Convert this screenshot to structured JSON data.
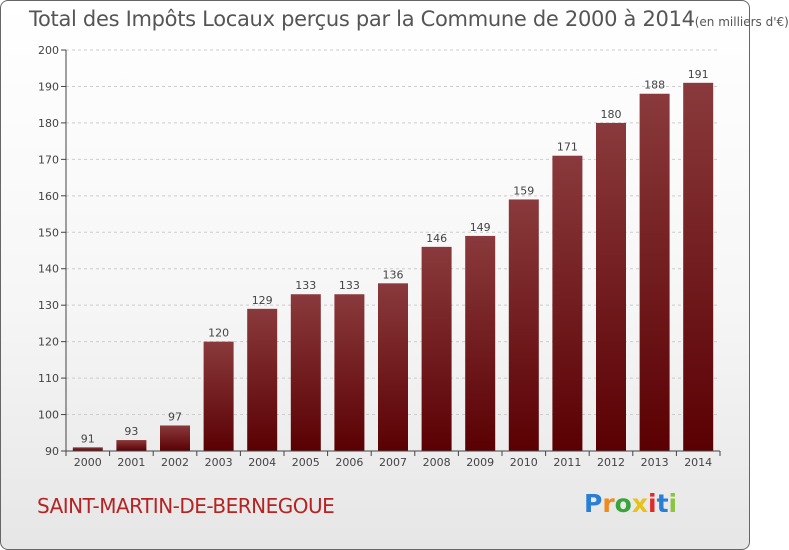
{
  "title": "Total des Impôts Locaux perçus par la Commune de 2000 à 2014",
  "title_unit": "(en milliers d'€)",
  "commune": "SAINT-MARTIN-DE-BERNEGOUE",
  "logo": {
    "text": "Proxiti",
    "letters": [
      "P",
      "r",
      "o",
      "x",
      "i",
      "t",
      "i"
    ],
    "colors": [
      "#2a7fd4",
      "#f08a1c",
      "#3aa33a",
      "#e8c21a",
      "#e02a2a",
      "#2a7fd4",
      "#8bc53f"
    ]
  },
  "colors": {
    "bar_top": "#8a3a3c",
    "bar_bottom": "#5a0003",
    "grid": "#cccccc"
  },
  "chart_data": {
    "type": "bar",
    "title": "Total des Impôts Locaux perçus par la Commune de 2000 à 2014 (en milliers d'€)",
    "xlabel": "",
    "ylabel": "",
    "categories": [
      "2000",
      "2001",
      "2002",
      "2003",
      "2004",
      "2005",
      "2006",
      "2007",
      "2008",
      "2009",
      "2010",
      "2011",
      "2012",
      "2013",
      "2014"
    ],
    "values": [
      91,
      93,
      97,
      120,
      129,
      133,
      133,
      136,
      146,
      149,
      159,
      171,
      180,
      188,
      191
    ],
    "ylim": [
      90,
      200
    ],
    "yticks": [
      90,
      100,
      110,
      120,
      130,
      140,
      150,
      160,
      170,
      180,
      190,
      200
    ],
    "grid": true
  }
}
